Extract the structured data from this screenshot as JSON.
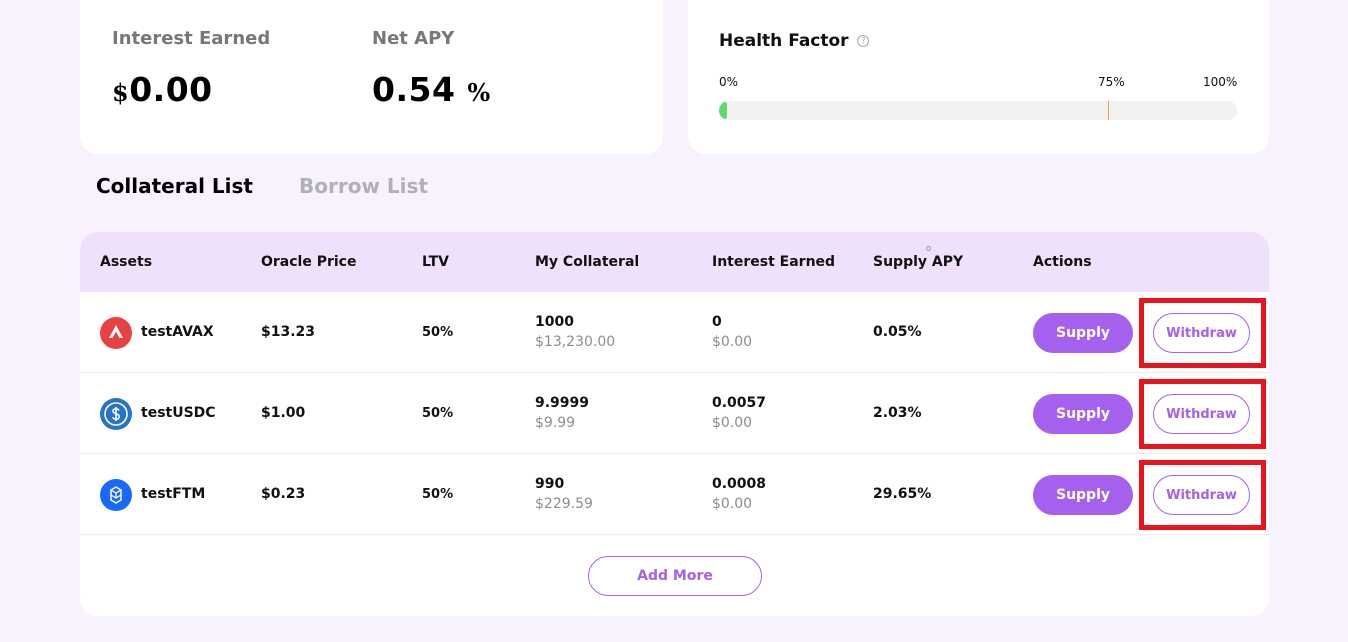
{
  "summary": {
    "interest_label": "Interest Earned",
    "interest_currency": "$",
    "interest_value": "0.00",
    "apy_label": "Net APY",
    "apy_value": "0.54",
    "apy_unit": "%"
  },
  "health": {
    "title": "Health Factor",
    "help_icon": "?",
    "tick_min": "0%",
    "tick_warn": "75%",
    "tick_max": "100%",
    "fill_fraction": 0.01,
    "warn_fraction": 0.75,
    "fill_color": "#58dc6e",
    "marker_color": "#f0a050"
  },
  "tabs": {
    "collateral": "Collateral List",
    "borrow": "Borrow List"
  },
  "table": {
    "headers": [
      "Assets",
      "Oracle Price",
      "LTV",
      "My Collateral",
      "Interest Earned",
      "Supply APY",
      "Actions"
    ],
    "rows": [
      {
        "asset": "testAVAX",
        "icon": "avax-icon",
        "price": "$13.23",
        "ltv": "50%",
        "collateral": "1000",
        "collateral_usd": "$13,230.00",
        "interest": "0",
        "interest_usd": "$0.00",
        "apy": "0.05%",
        "supply_label": "Supply",
        "withdraw_label": "Withdraw"
      },
      {
        "asset": "testUSDC",
        "icon": "usdc-icon",
        "price": "$1.00",
        "ltv": "50%",
        "collateral": "9.9999",
        "collateral_usd": "$9.99",
        "interest": "0.0057",
        "interest_usd": "$0.00",
        "apy": "2.03%",
        "supply_label": "Supply",
        "withdraw_label": "Withdraw"
      },
      {
        "asset": "testFTM",
        "icon": "ftm-icon",
        "price": "$0.23",
        "ltv": "50%",
        "collateral": "990",
        "collateral_usd": "$229.59",
        "interest": "0.0008",
        "interest_usd": "$0.00",
        "apy": "29.65%",
        "supply_label": "Supply",
        "withdraw_label": "Withdraw"
      }
    ],
    "add_more_label": "Add More"
  },
  "colors": {
    "accent": "#a561ee",
    "highlight": "#e8141e",
    "header_bg": "#efe1fc",
    "page_bg": "#f8f2fe"
  }
}
